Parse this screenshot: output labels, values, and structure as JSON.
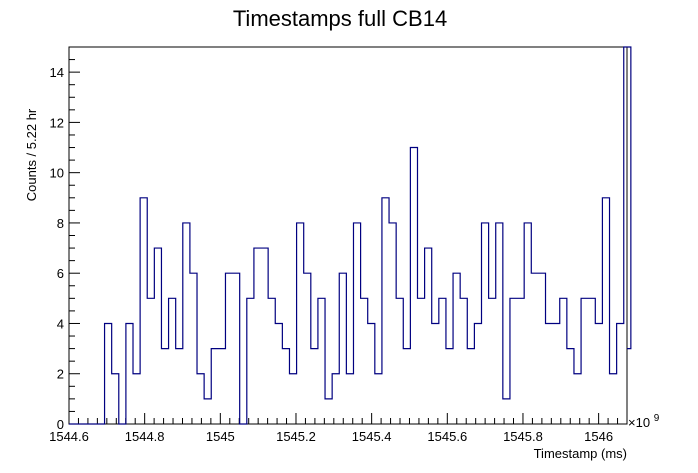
{
  "chart_data": {
    "type": "histogram",
    "title": "Timestamps full CB14",
    "xlabel": "Timestamp (ms)",
    "ylabel": "Counts / 5.22 hr",
    "x_multiplier": "×10",
    "x_multiplier_exponent": "9",
    "xlim": [
      1544.6,
      1546.075
    ],
    "ylim": [
      0,
      15
    ],
    "x_ticks": [
      1544.6,
      1544.8,
      1545,
      1545.2,
      1545.4,
      1545.6,
      1545.8,
      1546
    ],
    "x_tick_labels": [
      "1544.6",
      "1544.8",
      "1545",
      "1545.2",
      "1545.4",
      "1545.6",
      "1545.8",
      "1546"
    ],
    "y_ticks": [
      0,
      2,
      4,
      6,
      8,
      10,
      12,
      14
    ],
    "y_tick_labels": [
      "0",
      "2",
      "4",
      "6",
      "8",
      "10",
      "12",
      "14"
    ],
    "line_color": "#000080",
    "series": [
      {
        "bin_edges_x_start": 1544.6,
        "bin_width": 0.0188,
        "values": [
          0,
          0,
          0,
          0,
          0,
          4,
          2,
          0,
          4,
          2,
          9,
          5,
          7,
          3,
          5,
          3,
          8,
          6,
          2,
          1,
          3,
          3,
          6,
          6,
          0,
          5,
          7,
          7,
          5,
          4,
          3,
          2,
          8,
          6,
          3,
          5,
          1,
          2,
          6,
          2,
          8,
          5,
          4,
          2,
          9,
          8,
          5,
          3,
          11,
          5,
          7,
          4,
          5,
          3,
          6,
          5,
          3,
          4,
          8,
          5,
          8,
          1,
          5,
          5,
          8,
          6,
          6,
          4,
          4,
          5,
          3,
          2,
          5,
          5,
          4,
          9,
          2,
          4,
          15,
          3
        ]
      }
    ]
  }
}
